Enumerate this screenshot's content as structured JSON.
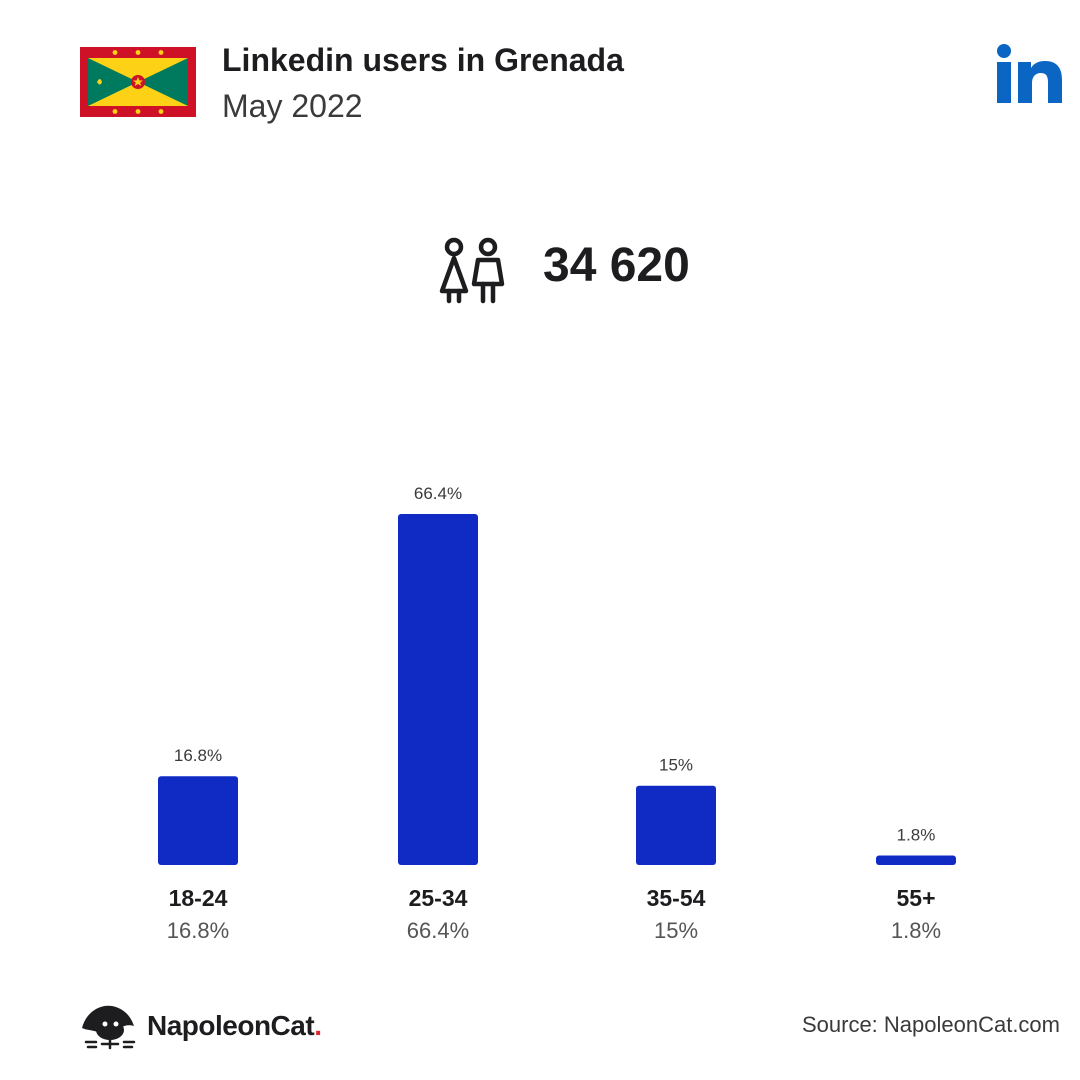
{
  "header": {
    "title": "Linkedin users in Grenada",
    "subtitle": "May 2022"
  },
  "summary": {
    "total_users": "34 620"
  },
  "colors": {
    "bar": "#0f2bc4",
    "linkedin": "#0a66c2",
    "flag_red": "#ce1126",
    "flag_yellow": "#fcd116",
    "flag_green": "#007a5e"
  },
  "icons": {
    "flag": "grenada-flag-icon",
    "brand": "linkedin-logo-icon",
    "users": "people-icon",
    "footer_brand": "napoleoncat-logo-icon"
  },
  "chart_data": {
    "type": "bar",
    "categories": [
      "18-24",
      "25-34",
      "35-54",
      "55+"
    ],
    "values": [
      16.8,
      66.4,
      15,
      1.8
    ],
    "value_labels": [
      "16.8%",
      "66.4%",
      "15%",
      "1.8%"
    ],
    "unit": "%",
    "grid": false,
    "legend": "none"
  },
  "footer": {
    "brand_name": "NapoleonCat",
    "brand_dot": ".",
    "source": "Source: NapoleonCat.com"
  }
}
